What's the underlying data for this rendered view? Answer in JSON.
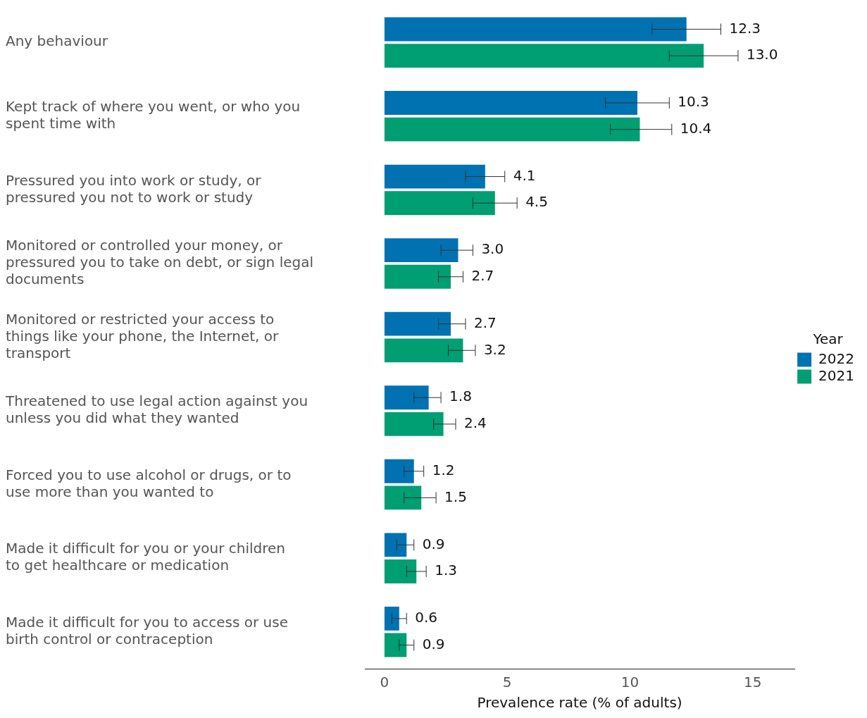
{
  "chart_data": {
    "type": "bar",
    "orientation": "horizontal",
    "xlabel": "Prevalence rate (% of adults)",
    "legend_title": "Year",
    "legend": "right",
    "grid": false,
    "categories": [
      "Any behaviour",
      "Kept track of where you went, or who you spent time with",
      "Pressured you into work or study, or pressured you not to work or study",
      "Monitored or controlled your money, or pressured you to take on debt, or sign legal documents",
      "Monitored or restricted your access to things like your phone, the Internet, or transport",
      "Threatened to use legal action against you unless you did what they wanted",
      "Forced you to use alcohol or drugs, or to use more than you wanted to",
      "Made it difficult for you or your children to get healthcare or medication",
      "Made it difficult for you to access or use birth control or contraception"
    ],
    "xlim": [
      -0.8,
      16.7
    ],
    "xticks": [
      0,
      5,
      10,
      15
    ],
    "series": [
      {
        "name": "2022",
        "color": "#0072b2",
        "values": [
          12.3,
          10.3,
          4.1,
          3.0,
          2.7,
          1.8,
          1.2,
          0.9,
          0.6
        ],
        "value_labels": [
          "12.3",
          "10.3",
          "4.1",
          "3.0",
          "2.7",
          "1.8",
          "1.2",
          "0.9",
          "0.6"
        ],
        "errors": [
          [
            10.9,
            13.7
          ],
          [
            9.0,
            11.6
          ],
          [
            3.3,
            4.9
          ],
          [
            2.3,
            3.6
          ],
          [
            2.2,
            3.3
          ],
          [
            1.2,
            2.3
          ],
          [
            0.8,
            1.6
          ],
          [
            0.5,
            1.2
          ],
          [
            0.3,
            0.9
          ]
        ]
      },
      {
        "name": "2021",
        "color": "#009e73",
        "values": [
          13.0,
          10.4,
          4.5,
          2.7,
          3.2,
          2.4,
          1.5,
          1.3,
          0.9
        ],
        "value_labels": [
          "13.0",
          "10.4",
          "4.5",
          "2.7",
          "3.2",
          "2.4",
          "1.5",
          "1.3",
          "0.9"
        ],
        "errors": [
          [
            11.6,
            14.4
          ],
          [
            9.2,
            11.7
          ],
          [
            3.6,
            5.4
          ],
          [
            2.2,
            3.2
          ],
          [
            2.6,
            3.7
          ],
          [
            2.0,
            2.9
          ],
          [
            0.8,
            2.1
          ],
          [
            0.9,
            1.7
          ],
          [
            0.6,
            1.2
          ]
        ]
      }
    ]
  }
}
